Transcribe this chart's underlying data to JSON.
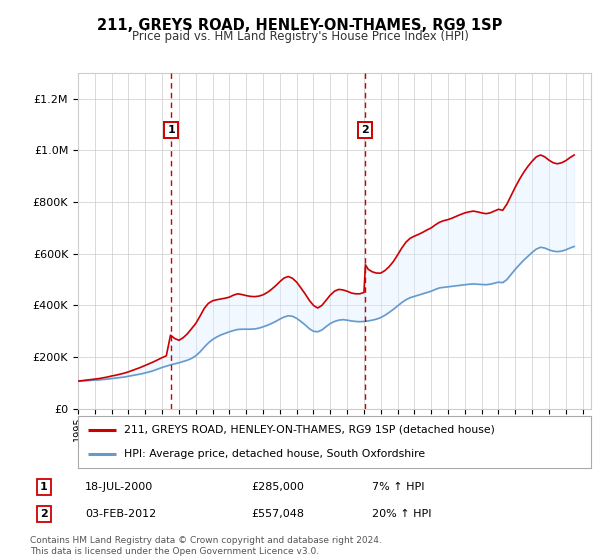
{
  "title": "211, GREYS ROAD, HENLEY-ON-THAMES, RG9 1SP",
  "subtitle": "Price paid vs. HM Land Registry's House Price Index (HPI)",
  "legend_line1": "211, GREYS ROAD, HENLEY-ON-THAMES, RG9 1SP (detached house)",
  "legend_line2": "HPI: Average price, detached house, South Oxfordshire",
  "annotation1_label": "1",
  "annotation1_date": "18-JUL-2000",
  "annotation1_price": "£285,000",
  "annotation1_hpi": "7% ↑ HPI",
  "annotation1_year": 2000.54,
  "annotation1_value": 285000,
  "annotation2_label": "2",
  "annotation2_date": "03-FEB-2012",
  "annotation2_price": "£557,048",
  "annotation2_hpi": "20% ↑ HPI",
  "annotation2_year": 2012.09,
  "annotation2_value": 557048,
  "price_color": "#cc0000",
  "hpi_color": "#6699cc",
  "shaded_color": "#ddeeff",
  "background_color": "#ffffff",
  "grid_color": "#cccccc",
  "ylim": [
    0,
    1300000
  ],
  "xlim_start": 1995,
  "xlim_end": 2025.5,
  "footer": "Contains HM Land Registry data © Crown copyright and database right 2024.\nThis data is licensed under the Open Government Licence v3.0.",
  "hpi_data": [
    [
      1995,
      107000
    ],
    [
      1995.25,
      108000
    ],
    [
      1995.5,
      109000
    ],
    [
      1995.75,
      110000
    ],
    [
      1996,
      111000
    ],
    [
      1996.25,
      112000
    ],
    [
      1996.5,
      113500
    ],
    [
      1996.75,
      115000
    ],
    [
      1997,
      117000
    ],
    [
      1997.25,
      119000
    ],
    [
      1997.5,
      121000
    ],
    [
      1997.75,
      123000
    ],
    [
      1998,
      126000
    ],
    [
      1998.25,
      129000
    ],
    [
      1998.5,
      132000
    ],
    [
      1998.75,
      135000
    ],
    [
      1999,
      139000
    ],
    [
      1999.25,
      143000
    ],
    [
      1999.5,
      148000
    ],
    [
      1999.75,
      154000
    ],
    [
      2000,
      160000
    ],
    [
      2000.25,
      165000
    ],
    [
      2000.5,
      170000
    ],
    [
      2000.75,
      174000
    ],
    [
      2001,
      178000
    ],
    [
      2001.25,
      183000
    ],
    [
      2001.5,
      188000
    ],
    [
      2001.75,
      195000
    ],
    [
      2002,
      205000
    ],
    [
      2002.25,
      220000
    ],
    [
      2002.5,
      238000
    ],
    [
      2002.75,
      255000
    ],
    [
      2003,
      268000
    ],
    [
      2003.25,
      278000
    ],
    [
      2003.5,
      286000
    ],
    [
      2003.75,
      292000
    ],
    [
      2004,
      298000
    ],
    [
      2004.25,
      303000
    ],
    [
      2004.5,
      307000
    ],
    [
      2004.75,
      308000
    ],
    [
      2005,
      308000
    ],
    [
      2005.25,
      308000
    ],
    [
      2005.5,
      309000
    ],
    [
      2005.75,
      312000
    ],
    [
      2006,
      317000
    ],
    [
      2006.25,
      323000
    ],
    [
      2006.5,
      330000
    ],
    [
      2006.75,
      338000
    ],
    [
      2007,
      347000
    ],
    [
      2007.25,
      355000
    ],
    [
      2007.5,
      360000
    ],
    [
      2007.75,
      358000
    ],
    [
      2008,
      350000
    ],
    [
      2008.25,
      338000
    ],
    [
      2008.5,
      325000
    ],
    [
      2008.75,
      310000
    ],
    [
      2009,
      300000
    ],
    [
      2009.25,
      298000
    ],
    [
      2009.5,
      305000
    ],
    [
      2009.75,
      318000
    ],
    [
      2010,
      330000
    ],
    [
      2010.25,
      338000
    ],
    [
      2010.5,
      343000
    ],
    [
      2010.75,
      345000
    ],
    [
      2011,
      343000
    ],
    [
      2011.25,
      340000
    ],
    [
      2011.5,
      338000
    ],
    [
      2011.75,
      337000
    ],
    [
      2012,
      338000
    ],
    [
      2012.25,
      340000
    ],
    [
      2012.5,
      343000
    ],
    [
      2012.75,
      347000
    ],
    [
      2013,
      353000
    ],
    [
      2013.25,
      362000
    ],
    [
      2013.5,
      373000
    ],
    [
      2013.75,
      385000
    ],
    [
      2014,
      398000
    ],
    [
      2014.25,
      411000
    ],
    [
      2014.5,
      422000
    ],
    [
      2014.75,
      430000
    ],
    [
      2015,
      435000
    ],
    [
      2015.25,
      440000
    ],
    [
      2015.5,
      445000
    ],
    [
      2015.75,
      450000
    ],
    [
      2016,
      455000
    ],
    [
      2016.25,
      462000
    ],
    [
      2016.5,
      468000
    ],
    [
      2016.75,
      470000
    ],
    [
      2017,
      472000
    ],
    [
      2017.25,
      474000
    ],
    [
      2017.5,
      476000
    ],
    [
      2017.75,
      478000
    ],
    [
      2018,
      480000
    ],
    [
      2018.25,
      482000
    ],
    [
      2018.5,
      483000
    ],
    [
      2018.75,
      482000
    ],
    [
      2019,
      481000
    ],
    [
      2019.25,
      480000
    ],
    [
      2019.5,
      482000
    ],
    [
      2019.75,
      486000
    ],
    [
      2020,
      490000
    ],
    [
      2020.25,
      488000
    ],
    [
      2020.5,
      500000
    ],
    [
      2020.75,
      520000
    ],
    [
      2021,
      540000
    ],
    [
      2021.25,
      558000
    ],
    [
      2021.5,
      575000
    ],
    [
      2021.75,
      590000
    ],
    [
      2022,
      605000
    ],
    [
      2022.25,
      618000
    ],
    [
      2022.5,
      625000
    ],
    [
      2022.75,
      622000
    ],
    [
      2023,
      615000
    ],
    [
      2023.25,
      610000
    ],
    [
      2023.5,
      608000
    ],
    [
      2023.75,
      610000
    ],
    [
      2024,
      615000
    ],
    [
      2024.25,
      622000
    ],
    [
      2024.5,
      628000
    ]
  ],
  "price_data": [
    [
      1995,
      107000
    ],
    [
      1995.25,
      109000
    ],
    [
      1995.5,
      111000
    ],
    [
      1995.75,
      113000
    ],
    [
      1996,
      115000
    ],
    [
      1996.25,
      117000
    ],
    [
      1996.5,
      120000
    ],
    [
      1996.75,
      123000
    ],
    [
      1997,
      127000
    ],
    [
      1997.25,
      130000
    ],
    [
      1997.5,
      134000
    ],
    [
      1997.75,
      138000
    ],
    [
      1998,
      143000
    ],
    [
      1998.25,
      149000
    ],
    [
      1998.5,
      155000
    ],
    [
      1998.75,
      161000
    ],
    [
      1999,
      168000
    ],
    [
      1999.25,
      175000
    ],
    [
      1999.5,
      182000
    ],
    [
      1999.75,
      190000
    ],
    [
      2000,
      198000
    ],
    [
      2000.25,
      205000
    ],
    [
      2000.5,
      285000
    ],
    [
      2000.75,
      272000
    ],
    [
      2001,
      265000
    ],
    [
      2001.25,
      275000
    ],
    [
      2001.5,
      290000
    ],
    [
      2001.75,
      310000
    ],
    [
      2002,
      330000
    ],
    [
      2002.25,
      358000
    ],
    [
      2002.5,
      388000
    ],
    [
      2002.75,
      408000
    ],
    [
      2003,
      418000
    ],
    [
      2003.25,
      422000
    ],
    [
      2003.5,
      425000
    ],
    [
      2003.75,
      428000
    ],
    [
      2004,
      432000
    ],
    [
      2004.25,
      440000
    ],
    [
      2004.5,
      445000
    ],
    [
      2004.75,
      442000
    ],
    [
      2005,
      438000
    ],
    [
      2005.25,
      435000
    ],
    [
      2005.5,
      434000
    ],
    [
      2005.75,
      436000
    ],
    [
      2006,
      441000
    ],
    [
      2006.25,
      450000
    ],
    [
      2006.5,
      462000
    ],
    [
      2006.75,
      476000
    ],
    [
      2007,
      492000
    ],
    [
      2007.25,
      506000
    ],
    [
      2007.5,
      512000
    ],
    [
      2007.75,
      505000
    ],
    [
      2008,
      490000
    ],
    [
      2008.25,
      468000
    ],
    [
      2008.5,
      445000
    ],
    [
      2008.75,
      420000
    ],
    [
      2009,
      400000
    ],
    [
      2009.25,
      390000
    ],
    [
      2009.5,
      400000
    ],
    [
      2009.75,
      420000
    ],
    [
      2010,
      440000
    ],
    [
      2010.25,
      455000
    ],
    [
      2010.5,
      462000
    ],
    [
      2010.75,
      460000
    ],
    [
      2011,
      455000
    ],
    [
      2011.25,
      448000
    ],
    [
      2011.5,
      445000
    ],
    [
      2011.75,
      445000
    ],
    [
      2012,
      450000
    ],
    [
      2012.09,
      557048
    ],
    [
      2012.25,
      540000
    ],
    [
      2012.5,
      530000
    ],
    [
      2012.75,
      525000
    ],
    [
      2013,
      525000
    ],
    [
      2013.25,
      535000
    ],
    [
      2013.5,
      550000
    ],
    [
      2013.75,
      570000
    ],
    [
      2014,
      595000
    ],
    [
      2014.25,
      622000
    ],
    [
      2014.5,
      645000
    ],
    [
      2014.75,
      660000
    ],
    [
      2015,
      668000
    ],
    [
      2015.25,
      675000
    ],
    [
      2015.5,
      683000
    ],
    [
      2015.75,
      692000
    ],
    [
      2016,
      700000
    ],
    [
      2016.25,
      712000
    ],
    [
      2016.5,
      722000
    ],
    [
      2016.75,
      728000
    ],
    [
      2017,
      732000
    ],
    [
      2017.25,
      738000
    ],
    [
      2017.5,
      745000
    ],
    [
      2017.75,
      752000
    ],
    [
      2018,
      758000
    ],
    [
      2018.25,
      762000
    ],
    [
      2018.5,
      765000
    ],
    [
      2018.75,
      762000
    ],
    [
      2019,
      758000
    ],
    [
      2019.25,
      755000
    ],
    [
      2019.5,
      758000
    ],
    [
      2019.75,
      765000
    ],
    [
      2020,
      772000
    ],
    [
      2020.25,
      768000
    ],
    [
      2020.5,
      792000
    ],
    [
      2020.75,
      825000
    ],
    [
      2021,
      858000
    ],
    [
      2021.25,
      888000
    ],
    [
      2021.5,
      915000
    ],
    [
      2021.75,
      938000
    ],
    [
      2022,
      958000
    ],
    [
      2022.25,
      975000
    ],
    [
      2022.5,
      982000
    ],
    [
      2022.75,
      975000
    ],
    [
      2023,
      962000
    ],
    [
      2023.25,
      952000
    ],
    [
      2023.5,
      948000
    ],
    [
      2023.75,
      952000
    ],
    [
      2024,
      960000
    ],
    [
      2024.25,
      972000
    ],
    [
      2024.5,
      982000
    ]
  ]
}
